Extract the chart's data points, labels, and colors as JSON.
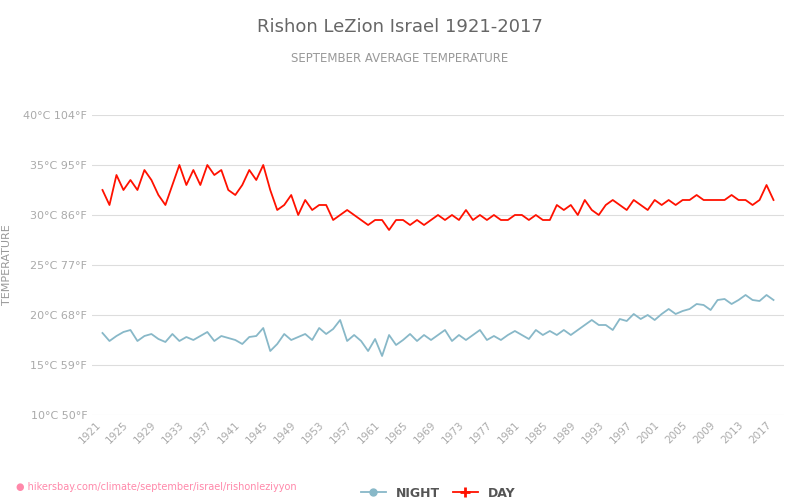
{
  "title": "Rishon LeZion Israel 1921-2017",
  "subtitle": "SEPTEMBER AVERAGE TEMPERATURE",
  "title_color": "#666666",
  "subtitle_color": "#999999",
  "ylabel": "TEMPERATURE",
  "ylabel_color": "#999999",
  "background_color": "#ffffff",
  "grid_color": "#dddddd",
  "url_text": "● hikersbay.com/climate/september/israel/rishonleziyyon",
  "years": [
    1921,
    1922,
    1923,
    1924,
    1925,
    1926,
    1927,
    1928,
    1929,
    1930,
    1931,
    1932,
    1933,
    1934,
    1935,
    1936,
    1937,
    1938,
    1939,
    1940,
    1941,
    1942,
    1943,
    1944,
    1945,
    1946,
    1947,
    1948,
    1949,
    1950,
    1951,
    1952,
    1953,
    1954,
    1955,
    1956,
    1957,
    1958,
    1959,
    1960,
    1961,
    1962,
    1963,
    1964,
    1965,
    1966,
    1967,
    1968,
    1969,
    1970,
    1971,
    1972,
    1973,
    1974,
    1975,
    1976,
    1977,
    1978,
    1979,
    1980,
    1981,
    1982,
    1983,
    1984,
    1985,
    1986,
    1987,
    1988,
    1989,
    1990,
    1991,
    1992,
    1993,
    1994,
    1995,
    1996,
    1997,
    1998,
    1999,
    2000,
    2001,
    2002,
    2003,
    2004,
    2005,
    2006,
    2007,
    2008,
    2009,
    2010,
    2011,
    2012,
    2013,
    2014,
    2015,
    2016,
    2017
  ],
  "day_temps": [
    32.5,
    31.0,
    34.0,
    32.5,
    33.5,
    32.5,
    34.5,
    33.5,
    32.0,
    31.0,
    33.0,
    35.0,
    33.0,
    34.5,
    33.0,
    35.0,
    34.0,
    34.5,
    32.5,
    32.0,
    33.0,
    34.5,
    33.5,
    35.0,
    32.5,
    30.5,
    31.0,
    32.0,
    30.0,
    31.5,
    30.5,
    31.0,
    31.0,
    29.5,
    30.0,
    30.5,
    30.0,
    29.5,
    29.0,
    29.5,
    29.5,
    28.5,
    29.5,
    29.5,
    29.0,
    29.5,
    29.0,
    29.5,
    30.0,
    29.5,
    30.0,
    29.5,
    30.5,
    29.5,
    30.0,
    29.5,
    30.0,
    29.5,
    29.5,
    30.0,
    30.0,
    29.5,
    30.0,
    29.5,
    29.5,
    31.0,
    30.5,
    31.0,
    30.0,
    31.5,
    30.5,
    30.0,
    31.0,
    31.5,
    31.0,
    30.5,
    31.5,
    31.0,
    30.5,
    31.5,
    31.0,
    31.5,
    31.0,
    31.5,
    31.5,
    32.0,
    31.5,
    31.5,
    31.5,
    31.5,
    32.0,
    31.5,
    31.5,
    31.0,
    31.5,
    33.0,
    31.5
  ],
  "night_temps": [
    18.2,
    17.4,
    17.9,
    18.3,
    18.5,
    17.4,
    17.9,
    18.1,
    17.6,
    17.3,
    18.1,
    17.4,
    17.8,
    17.5,
    17.9,
    18.3,
    17.4,
    17.9,
    17.7,
    17.5,
    17.1,
    17.8,
    17.9,
    18.7,
    16.4,
    17.1,
    18.1,
    17.5,
    17.8,
    18.1,
    17.5,
    18.7,
    18.1,
    18.6,
    19.5,
    17.4,
    18.0,
    17.4,
    16.4,
    17.6,
    15.9,
    18.0,
    17.0,
    17.5,
    18.1,
    17.4,
    18.0,
    17.5,
    18.0,
    18.5,
    17.4,
    18.0,
    17.5,
    18.0,
    18.5,
    17.5,
    17.9,
    17.5,
    18.0,
    18.4,
    18.0,
    17.6,
    18.5,
    18.0,
    18.4,
    18.0,
    18.5,
    18.0,
    18.5,
    19.0,
    19.5,
    19.0,
    19.0,
    18.5,
    19.6,
    19.4,
    20.1,
    19.6,
    20.0,
    19.5,
    20.1,
    20.6,
    20.1,
    20.4,
    20.6,
    21.1,
    21.0,
    20.5,
    21.5,
    21.6,
    21.1,
    21.5,
    22.0,
    21.5,
    21.4,
    22.0,
    21.5
  ],
  "day_color": "#ff1100",
  "night_color": "#88b8c8",
  "ylim_min": 10,
  "ylim_max": 40,
  "yticks_c": [
    10,
    15,
    20,
    25,
    30,
    35,
    40
  ],
  "ytick_labels_left": [
    "10°C 50°F",
    "15°C 59°F",
    "20°C 68°F",
    "25°C 77°F",
    "30°C 86°F",
    "35°C 95°F",
    "40°C 104°F"
  ],
  "ytick_colors": [
    "#44cc44",
    "#44cc44",
    "#ff55aa",
    "#ff55aa",
    "#ff55aa",
    "#ff55aa",
    "#ff55aa"
  ],
  "xtick_years": [
    1921,
    1925,
    1929,
    1933,
    1937,
    1941,
    1945,
    1949,
    1953,
    1957,
    1961,
    1965,
    1969,
    1973,
    1977,
    1981,
    1985,
    1989,
    1993,
    1997,
    2001,
    2005,
    2009,
    2013,
    2017
  ],
  "legend_night_label": "NIGHT",
  "legend_day_label": "DAY",
  "line_width": 1.3
}
